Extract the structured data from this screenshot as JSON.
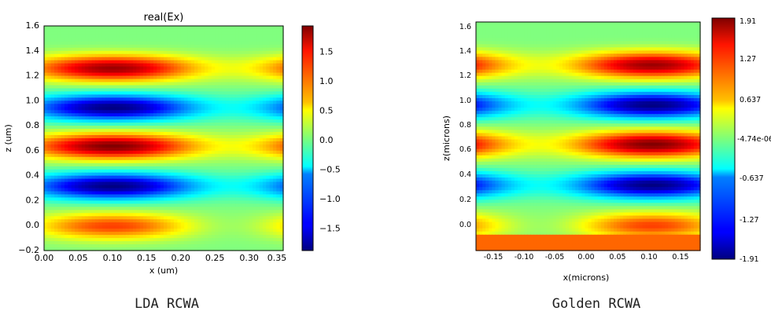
{
  "chart_data": [
    {
      "type": "heatmap",
      "title": "real(Ex)",
      "xlabel": "x (um)",
      "ylabel": "z (um)",
      "xlim": [
        0.0,
        0.35
      ],
      "ylim": [
        -0.2,
        1.6
      ],
      "x_ticks": [
        "0.00",
        "0.05",
        "0.10",
        "0.15",
        "0.20",
        "0.25",
        "0.30",
        "0.35"
      ],
      "y_ticks": [
        "−0.2",
        "0.0",
        "0.2",
        "0.4",
        "0.6",
        "0.8",
        "1.0",
        "1.2",
        "1.4",
        "1.6"
      ],
      "colorbar": {
        "min": -1.91,
        "max": 1.91,
        "ticks": [
          "1.5",
          "1.0",
          "0.5",
          "0.0",
          "−0.5",
          "−1.0",
          "−1.5"
        ]
      },
      "colormap": "jet",
      "caption": "LDA RCWA"
    },
    {
      "type": "heatmap",
      "title": "",
      "xlabel": "x(microns)",
      "ylabel": "z(microns)",
      "xlim": [
        -0.175,
        0.175
      ],
      "ylim": [
        -0.2,
        1.6
      ],
      "x_ticks": [
        "-0.15",
        "-0.10",
        "-0.05",
        "0.00",
        "0.05",
        "0.10",
        "0.15"
      ],
      "y_ticks": [
        "0.0",
        "0.2",
        "0.4",
        "0.6",
        "0.8",
        "1.0",
        "1.2",
        "1.4",
        "1.6"
      ],
      "colorbar": {
        "min": -1.91,
        "max": 1.91,
        "ticks": [
          "1.91",
          "1.27",
          "0.637",
          "-4.74e-06",
          "-0.637",
          "-1.27",
          "-1.91"
        ]
      },
      "colormap": "jet",
      "caption": "Golden RCWA"
    }
  ]
}
